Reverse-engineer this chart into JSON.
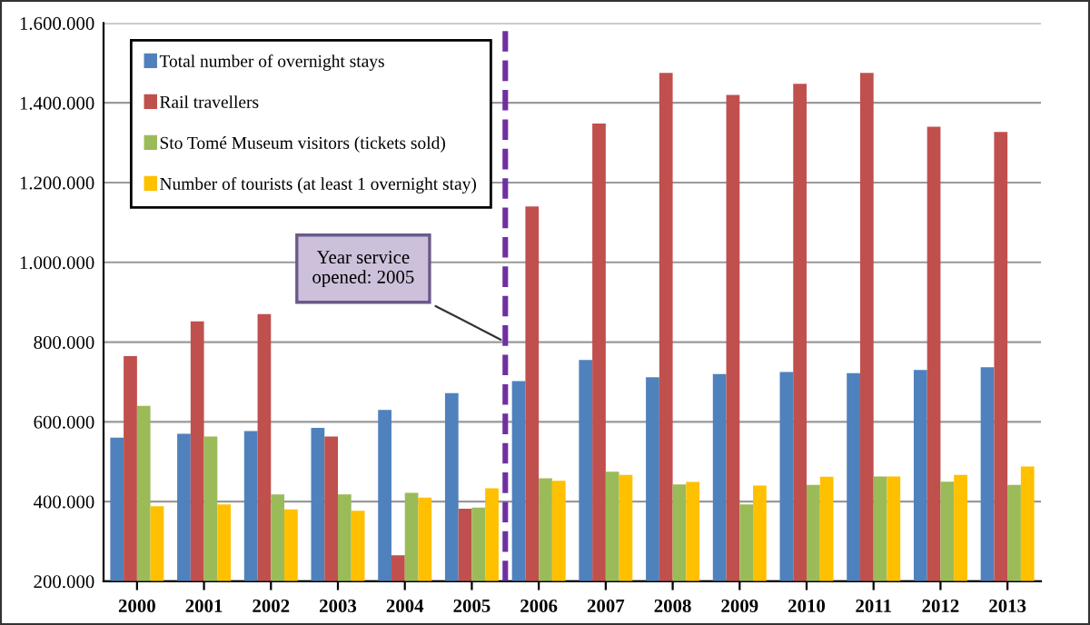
{
  "chart_data": {
    "type": "bar",
    "categories": [
      "2000",
      "2001",
      "2002",
      "2003",
      "2004",
      "2005",
      "2006",
      "2007",
      "2008",
      "2009",
      "2010",
      "2011",
      "2012",
      "2013"
    ],
    "series": [
      {
        "name": "Total number of overnight stays",
        "color": "#4f81bd",
        "values": [
          560000,
          570000,
          577000,
          585000,
          630000,
          672000,
          702000,
          755000,
          712000,
          720000,
          725000,
          722000,
          730000,
          737000
        ]
      },
      {
        "name": "Rail travellers",
        "color": "#c0504d",
        "values": [
          765000,
          852000,
          870000,
          563000,
          265000,
          382000,
          1140000,
          1348000,
          1475000,
          1420000,
          1448000,
          1475000,
          1340000,
          1327000
        ]
      },
      {
        "name": "Sto Tomé Museum visitors (tickets sold)",
        "color": "#9bbb59",
        "values": [
          640000,
          563000,
          418000,
          418000,
          422000,
          385000,
          458000,
          475000,
          443000,
          393000,
          442000,
          463000,
          450000,
          442000
        ]
      },
      {
        "name": "Number of tourists (at least 1 overnight stay)",
        "color": "#ffc000",
        "values": [
          388000,
          393000,
          380000,
          377000,
          410000,
          433000,
          452000,
          467000,
          449000,
          440000,
          462000,
          463000,
          467000,
          488000
        ]
      }
    ],
    "ylim": [
      200000,
      1600000
    ],
    "yticks": [
      {
        "value": 200000,
        "label": "200.000"
      },
      {
        "value": 400000,
        "label": "400.000"
      },
      {
        "value": 600000,
        "label": "600.000"
      },
      {
        "value": 800000,
        "label": "800.000"
      },
      {
        "value": 1000000,
        "label": "1.000.000"
      },
      {
        "value": 1200000,
        "label": "1.200.000"
      },
      {
        "value": 1400000,
        "label": "1.400.000"
      },
      {
        "value": 1600000,
        "label": "1.600.000"
      }
    ],
    "grid": "y",
    "legend": "top left",
    "ref_lines": [
      {
        "axis": "x",
        "value": "2005",
        "color": "#7030a0",
        "line_style": "dashed"
      }
    ],
    "annotations": [
      "Year service\nopened: 2005"
    ]
  }
}
